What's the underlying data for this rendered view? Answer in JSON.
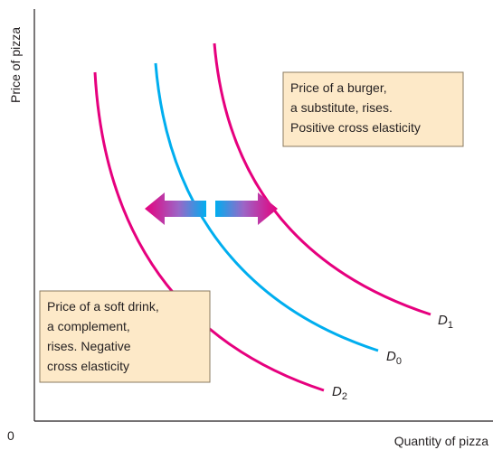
{
  "axes": {
    "y_label": "Price of pizza",
    "x_label": "Quantity of pizza",
    "origin": "0"
  },
  "curves": [
    {
      "letter": "D",
      "subscript": "1"
    },
    {
      "letter": "D",
      "subscript": "0"
    },
    {
      "letter": "D",
      "subscript": "2"
    }
  ],
  "boxes": [
    {
      "lines": [
        "Price of a burger,",
        "a substitute, rises.",
        "Positive cross elasticity"
      ]
    },
    {
      "lines": [
        "Price of a soft drink,",
        "a complement,",
        "rises. Negative",
        "cross elasticity"
      ]
    }
  ]
}
